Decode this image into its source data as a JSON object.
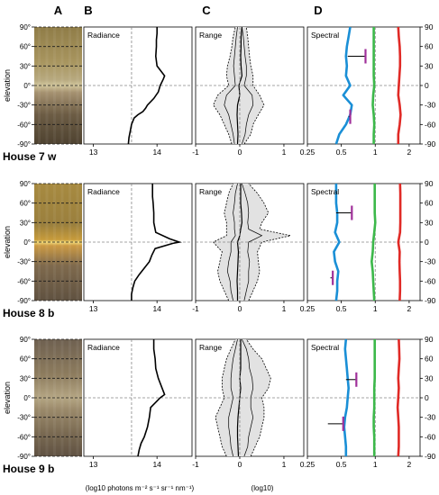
{
  "panel_letters": [
    "A",
    "B",
    "C",
    "D"
  ],
  "elevation_label": "elevation",
  "ticks": {
    "elevation": [
      "90°",
      "60°",
      "30°",
      "0°",
      "-30°",
      "-60°",
      "-90°"
    ],
    "right": [
      "90",
      "60",
      "30",
      "0",
      "-30",
      "-60",
      "-90"
    ],
    "radiance": [
      "13",
      "14"
    ],
    "range": [
      "-1",
      "0",
      "1"
    ],
    "spectral": [
      "0.25",
      "0.5",
      "1",
      "2"
    ]
  },
  "xlabels": {
    "radiance": "(log10 photons m⁻² s⁻¹ sr⁻¹ nm⁻¹)",
    "range": "(log10)"
  },
  "colors": {
    "blue": "#1a8fd6",
    "green": "#3cb84a",
    "red": "#e02a26",
    "magenta": "#a0309a",
    "shade": "#e2e2e2"
  },
  "chart_data": [
    {
      "house": "House 7 w",
      "type": "line",
      "radiance": {
        "title": "Radiance",
        "xlim": [
          12.85,
          14.55
        ],
        "ref_x": 13.6,
        "x": [
          13.55,
          13.56,
          13.58,
          13.6,
          13.64,
          13.7,
          13.78,
          13.82,
          13.85,
          13.95,
          14.02,
          14.05,
          14.1,
          14.12,
          14.0,
          13.98,
          13.99,
          13.99,
          14.0,
          14.0
        ],
        "y": [
          -90,
          -80,
          -70,
          -60,
          -50,
          -45,
          -40,
          -35,
          -30,
          -20,
          -10,
          0,
          10,
          15,
          30,
          45,
          60,
          70,
          80,
          90
        ]
      },
      "range": {
        "title": "Range",
        "xlim": [
          -1,
          1.45
        ],
        "elev": [
          -90,
          -75,
          -60,
          -45,
          -30,
          -15,
          0,
          15,
          30,
          45,
          60,
          75,
          90
        ],
        "median": [
          -0.05,
          -0.04,
          -0.05,
          -0.06,
          -0.05,
          0.0,
          -0.02,
          0.05,
          0.03,
          0.02,
          0.03,
          0.03,
          0.05
        ],
        "q25": [
          -0.12,
          -0.15,
          -0.2,
          -0.25,
          -0.35,
          -0.3,
          -0.1,
          -0.12,
          -0.14,
          -0.12,
          -0.1,
          -0.08,
          -0.05
        ],
        "q75": [
          0.05,
          0.12,
          0.15,
          0.2,
          0.3,
          0.28,
          0.1,
          0.15,
          0.15,
          0.12,
          0.1,
          0.08,
          0.05
        ],
        "min": [
          -0.18,
          -0.25,
          -0.35,
          -0.45,
          -0.6,
          -0.5,
          -0.25,
          -0.3,
          -0.28,
          -0.22,
          -0.18,
          -0.15,
          -0.1
        ],
        "max": [
          0.1,
          0.25,
          0.3,
          0.42,
          0.55,
          0.45,
          0.3,
          0.3,
          0.25,
          0.22,
          0.2,
          0.18,
          0.15
        ]
      },
      "spectral": {
        "title": "Spectral",
        "xlim": [
          0.25,
          2.5
        ],
        "elev": [
          -90,
          -75,
          -60,
          -45,
          -30,
          -15,
          0,
          15,
          30,
          45,
          60,
          75,
          90
        ],
        "blue": [
          0.45,
          0.48,
          0.55,
          0.6,
          0.62,
          0.52,
          0.6,
          0.55,
          0.56,
          0.55,
          0.56,
          0.58,
          0.6
        ],
        "green": [
          0.97,
          0.97,
          0.98,
          0.97,
          0.95,
          0.96,
          0.98,
          0.97,
          0.97,
          0.97,
          0.97,
          0.97,
          0.97
        ],
        "red": [
          1.6,
          1.6,
          1.65,
          1.68,
          1.65,
          1.6,
          1.62,
          1.64,
          1.66,
          1.66,
          1.65,
          1.62,
          1.6
        ],
        "bars": [
          {
            "elev": 45,
            "x0": 0.57,
            "x1": 0.82
          },
          {
            "elev": -48,
            "x0": 0.58,
            "x1": 0.6
          }
        ]
      }
    },
    {
      "house": "House 8 b",
      "type": "line",
      "radiance": {
        "title": "Radiance",
        "xlim": [
          12.85,
          14.55
        ],
        "ref_x": 13.6,
        "x": [
          13.6,
          13.6,
          13.62,
          13.65,
          13.72,
          13.8,
          13.88,
          13.92,
          13.97,
          14.25,
          14.35,
          14.2,
          13.98,
          13.95,
          13.95,
          13.94,
          13.93,
          13.93,
          13.93
        ],
        "y": [
          -90,
          -80,
          -70,
          -60,
          -50,
          -40,
          -30,
          -20,
          -10,
          -2,
          0,
          5,
          15,
          30,
          45,
          60,
          70,
          80,
          90
        ]
      },
      "range": {
        "title": "Range",
        "xlim": [
          -1,
          1.45
        ],
        "elev": [
          -90,
          -75,
          -60,
          -45,
          -30,
          -15,
          0,
          10,
          20,
          30,
          45,
          60,
          75,
          90
        ],
        "median": [
          -0.05,
          -0.05,
          -0.06,
          -0.05,
          -0.04,
          -0.03,
          -0.05,
          0.0,
          0.02,
          0.05,
          0.04,
          0.02,
          0.02,
          0.02
        ],
        "q25": [
          -0.15,
          -0.2,
          -0.22,
          -0.28,
          -0.25,
          -0.2,
          -0.2,
          -0.1,
          -0.12,
          -0.12,
          -0.15,
          -0.12,
          -0.1,
          -0.05
        ],
        "q75": [
          0.1,
          0.15,
          0.2,
          0.2,
          0.22,
          0.18,
          0.2,
          0.5,
          0.2,
          0.18,
          0.2,
          0.18,
          0.12,
          0.05
        ],
        "min": [
          -0.25,
          -0.35,
          -0.45,
          -0.5,
          -0.45,
          -0.4,
          -0.6,
          -0.3,
          -0.3,
          -0.3,
          -0.35,
          -0.3,
          -0.25,
          -0.15
        ],
        "max": [
          0.2,
          0.3,
          0.4,
          0.45,
          0.42,
          0.4,
          0.5,
          1.15,
          0.45,
          0.5,
          0.65,
          0.55,
          0.4,
          0.2
        ]
      },
      "spectral": {
        "title": "Spectral",
        "xlim": [
          0.25,
          2.5
        ],
        "elev": [
          -90,
          -75,
          -60,
          -45,
          -30,
          -15,
          0,
          15,
          30,
          45,
          60,
          75,
          90
        ],
        "blue": [
          0.45,
          0.46,
          0.46,
          0.47,
          0.44,
          0.43,
          0.48,
          0.44,
          0.46,
          0.46,
          0.45,
          0.45,
          0.45
        ],
        "green": [
          0.98,
          0.97,
          0.96,
          0.95,
          0.93,
          0.95,
          0.96,
          0.98,
          1.0,
          0.99,
          0.99,
          0.99,
          0.99
        ],
        "red": [
          1.65,
          1.66,
          1.66,
          1.65,
          1.64,
          1.65,
          1.6,
          1.66,
          1.67,
          1.67,
          1.67,
          1.67,
          1.66
        ],
        "bars": [
          {
            "elev": 45,
            "x0": 0.45,
            "x1": 0.62
          },
          {
            "elev": -55,
            "x0": 0.4,
            "x1": 0.42
          }
        ]
      }
    },
    {
      "house": "House 9 b",
      "type": "line",
      "radiance": {
        "title": "Radiance",
        "xlim": [
          12.85,
          14.55
        ],
        "ref_x": 13.6,
        "x": [
          13.7,
          13.72,
          13.75,
          13.8,
          13.85,
          13.88,
          13.9,
          14.0,
          14.05,
          14.12,
          14.08,
          14.02,
          13.98,
          13.97,
          13.95,
          13.95
        ],
        "y": [
          -90,
          -80,
          -70,
          -60,
          -45,
          -30,
          -15,
          -5,
          0,
          5,
          15,
          30,
          45,
          60,
          75,
          90
        ]
      },
      "range": {
        "title": "Range",
        "xlim": [
          -1,
          1.45
        ],
        "elev": [
          -90,
          -75,
          -60,
          -45,
          -30,
          -15,
          0,
          15,
          30,
          45,
          60,
          75,
          90
        ],
        "median": [
          -0.03,
          -0.04,
          -0.05,
          -0.05,
          -0.04,
          -0.02,
          0.0,
          0.02,
          0.0,
          0.02,
          0.02,
          0.02,
          0.02
        ],
        "q25": [
          -0.15,
          -0.2,
          -0.22,
          -0.25,
          -0.25,
          -0.2,
          -0.15,
          -0.2,
          -0.2,
          -0.18,
          -0.15,
          -0.1,
          -0.05
        ],
        "q75": [
          0.1,
          0.18,
          0.2,
          0.25,
          0.3,
          0.25,
          0.25,
          0.3,
          0.28,
          0.22,
          0.2,
          0.15,
          0.05
        ],
        "min": [
          -0.3,
          -0.4,
          -0.45,
          -0.5,
          -0.55,
          -0.45,
          -0.35,
          -0.4,
          -0.4,
          -0.35,
          -0.3,
          -0.2,
          -0.1
        ],
        "max": [
          0.25,
          0.35,
          0.45,
          0.5,
          0.55,
          0.55,
          0.5,
          0.65,
          0.7,
          0.6,
          0.5,
          0.3,
          0.15
        ]
      },
      "spectral": {
        "title": "Spectral",
        "xlim": [
          0.25,
          2.5
        ],
        "elev": [
          -90,
          -75,
          -60,
          -45,
          -30,
          -15,
          0,
          15,
          30,
          45,
          60,
          75,
          90
        ],
        "blue": [
          0.55,
          0.55,
          0.54,
          0.53,
          0.54,
          0.56,
          0.57,
          0.58,
          0.57,
          0.56,
          0.55,
          0.54,
          0.55
        ],
        "green": [
          0.98,
          0.98,
          0.98,
          0.97,
          0.97,
          0.98,
          0.98,
          0.98,
          0.99,
          0.99,
          0.99,
          0.99,
          0.99
        ],
        "red": [
          1.6,
          1.62,
          1.62,
          1.62,
          1.6,
          1.58,
          1.6,
          1.62,
          1.6,
          1.62,
          1.64,
          1.63,
          1.62
        ],
        "bars": [
          {
            "elev": 28,
            "x0": 0.55,
            "x1": 0.68
          },
          {
            "elev": -40,
            "x0": 0.38,
            "x1": 0.52
          }
        ]
      }
    }
  ]
}
